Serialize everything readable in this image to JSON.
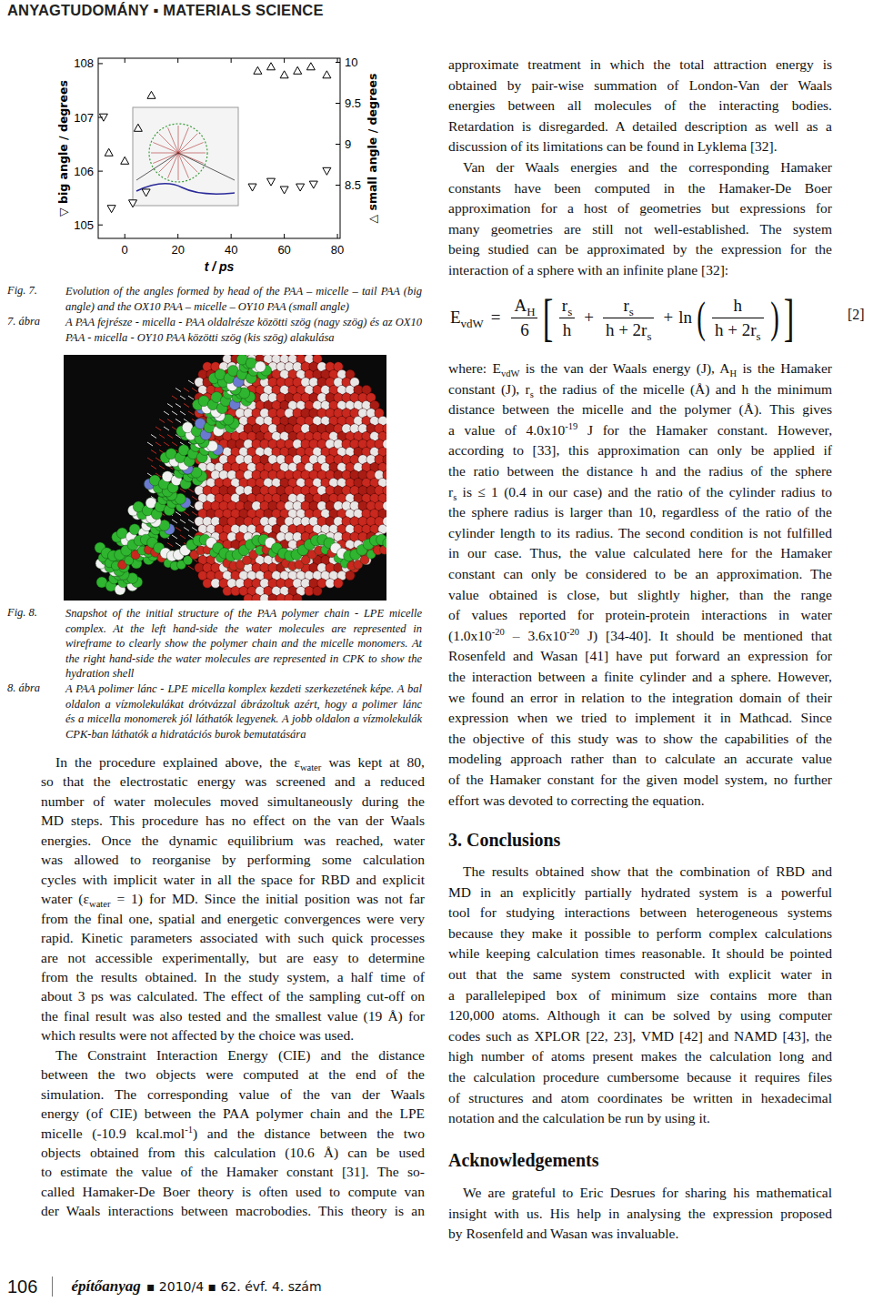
{
  "header": {
    "section": "ANYAGTUDOMÁNY ▪ MATERIALS SCIENCE"
  },
  "chart_data": {
    "type": "scatter",
    "x_label": "t / ps",
    "y_label": "▽ big angle / degrees",
    "y2_label": "△ small angle / degrees",
    "xlim": [
      -10,
      81
    ],
    "xticks": [
      0,
      20,
      40,
      60,
      80
    ],
    "ylim": [
      104.75,
      108.1
    ],
    "yticks": [
      105,
      106,
      107,
      108
    ],
    "y2lim": [
      7.85,
      10.05
    ],
    "y2ticks": [
      8.5,
      9,
      9.5,
      10
    ],
    "grid": false,
    "series": [
      {
        "marker": "triangle-down",
        "color": "#000000",
        "x": [
          -8,
          -5,
          3,
          8,
          48,
          55,
          60,
          66,
          71,
          76
        ],
        "values": [
          107.0,
          105.3,
          105.4,
          105.6,
          105.7,
          105.8,
          105.65,
          105.7,
          105.75,
          106.0
        ]
      },
      {
        "marker": "triangle-up",
        "color": "#000000",
        "axis": "y2",
        "x": [
          -6,
          0,
          5,
          10,
          50,
          55,
          60,
          65,
          70,
          76
        ],
        "values": [
          8.9,
          8.8,
          9.2,
          9.6,
          9.9,
          9.95,
          9.85,
          9.9,
          9.95,
          9.85
        ]
      }
    ]
  },
  "figures": [
    {
      "label": "Fig. 7.",
      "lines": [
        "Evolution of the angles formed by head of the PAA – micelle – tail PAA (big",
        "angle) and the OX10 PAA – micelle – OY10 PAA (small angle)"
      ],
      "label_hu": "7. ábra",
      "lines_hu": [
        "A PAA fejrésze - micella - PAA oldalrésze közötti szög (nagy szög) és az OX10",
        "PAA - micella - OY10 PAA közötti szög (kis szög) alakulása"
      ]
    },
    {
      "label": "Fig. 8.",
      "lines": [
        "Snapshot of the initial structure of the PAA polymer chain - LPE micelle",
        "complex. At the left hand-side the water molecules are represented in",
        "wireframe to clearly show the polymer chain and the micelle monomers. At",
        "the right hand-side the water molecules are represented in CPK to show the",
        "hydration shell"
      ],
      "label_hu": "8. ábra",
      "lines_hu": [
        "A PAA polimer lánc - LPE micella komplex kezdeti szerkezetének képe. A bal",
        "oldalon a vízmolekulákat drótvázzal ábrázoltuk azért, hogy a polimer lánc",
        "és a micella monomerek jól láthatók legyenek. A jobb oldalon a vízmolekulák",
        "CPK-ban láthatók a hidratációs burok bemutatására"
      ]
    }
  ],
  "left_column": [
    {
      "type": "paragraph",
      "indent": true,
      "lines": [
        [
          "In the procedure explained above, the ε",
          {
            "sub": "water"
          },
          " was kept at 80,"
        ],
        "so that the electrostatic energy was screened and a reduced",
        "number of water molecules moved simultaneously during the",
        "MD steps. This procedure has no effect on the van der Waals",
        "energies. Once the dynamic equilibrium was reached, water",
        "was allowed to reorganise by performing some calculation",
        "cycles with implicit water in all the space for RBD and explicit",
        [
          "water (ε",
          {
            "sub": "water"
          },
          " = 1) for MD. Since the initial position was not far"
        ],
        "from the final one, spatial and energetic convergences were very",
        "rapid. Kinetic parameters associated with such quick processes",
        "are not accessible experimentally, but are easy to determine",
        "from the results obtained. In the study system, a half time of",
        "about 3 ps was calculated. The effect of the sampling cut-off on",
        "the final result was also tested and the smallest value (19 Å) for",
        "which results were not affected by the choice was used."
      ]
    },
    {
      "type": "paragraph",
      "indent": true,
      "continues": true,
      "lines": [
        "The Constraint Interaction Energy (CIE) and the distance",
        "between the two objects were computed at the end of the",
        "simulation. The corresponding value of the van der Waals",
        "energy (of CIE) between the PAA polymer chain and the LPE",
        [
          "micelle (-10.9 kcal.mol",
          {
            "sup": "-1"
          },
          ") and the distance between the two"
        ],
        "objects obtained from this calculation (10.6 Å) can be used",
        "to estimate the value of the Hamaker constant [31]. The so-",
        "called Hamaker-De Boer theory is often used to compute van",
        "der Waals interactions between macrobodies. This theory is an"
      ]
    }
  ],
  "right_column": [
    {
      "type": "paragraph",
      "indent": false,
      "lines": [
        "approximate treatment in which the total attraction energy is",
        "obtained by pair-wise summation of London-Van der Waals",
        "energies between all molecules of the interacting bodies.",
        "Retardation is disregarded. A detailed description as well as a",
        "discussion of its limitations can be found in Lyklema [32]."
      ]
    },
    {
      "type": "paragraph",
      "indent": true,
      "lines": [
        "Van der Waals energies and the corresponding Hamaker",
        "constants have been computed in the Hamaker-De Boer",
        "approximation for a host of geometries but expressions for",
        "many geometries are still not well-established. The system",
        "being studied can be approximated by the expression for the",
        "interaction of a sphere with an infinite plane [32]:"
      ]
    },
    {
      "type": "equation",
      "lhs": [
        "E",
        {
          "sub": "vdW"
        }
      ],
      "rel": "=",
      "factor": {
        "num": [
          "A",
          {
            "sub": "H"
          }
        ],
        "den": [
          "6"
        ]
      },
      "terms": [
        {
          "num": [
            "r",
            {
              "sub": "s"
            }
          ],
          "den": [
            "h"
          ]
        },
        {
          "op": "+",
          "num": [
            "r",
            {
              "sub": "s"
            }
          ],
          "den": [
            "h + 2r",
            {
              "sub": "s"
            }
          ]
        },
        {
          "op": "+",
          "fn": "ln",
          "num": [
            "h"
          ],
          "den": [
            "h + 2r",
            {
              "sub": "s"
            }
          ]
        }
      ],
      "number": "[2]"
    },
    {
      "type": "paragraph",
      "indent": false,
      "lines": [
        [
          "where: E",
          {
            "sub": "vdW"
          },
          " is the van der Waals energy (J), A",
          {
            "sub": "H"
          },
          " is the Hamaker"
        ],
        [
          "constant (J), r",
          {
            "sub": "s"
          },
          " the radius of the micelle (Å) and h the minimum"
        ],
        "distance between the micelle and the polymer (Å). This gives",
        [
          "a value of 4.0x10",
          {
            "sup": "-19"
          },
          " J for the Hamaker constant. However,"
        ],
        "according to [33], this approximation can only be applied if",
        "the ratio between the distance h and the radius of the sphere",
        [
          "r",
          {
            "sub": "s"
          },
          " is ≤ 1 (0.4 in our case) and the ratio of the cylinder radius to"
        ],
        "the sphere radius is larger than 10, regardless of the ratio of the",
        "cylinder length to its radius. The second condition is not fulfilled",
        "in our case. Thus, the value calculated here for the Hamaker",
        "constant can only be considered to be an approximation. The",
        "value obtained is close, but slightly higher, than the range",
        "of values reported for protein-protein interactions in water",
        [
          "(1.0x10",
          {
            "sup": "-20"
          },
          " – 3.6x10",
          {
            "sup": "-20"
          },
          " J) [34-40]. It should be mentioned that"
        ],
        "Rosenfeld and Wasan [41] have put forward an expression for",
        "the interaction between a finite cylinder and a sphere. However,",
        "we found an error in relation to the integration domain of their",
        "expression when we tried to implement it in Mathcad. Since",
        "the objective of this study was to show the capabilities of the",
        "modeling approach rather than to calculate an accurate value",
        "of the Hamaker constant for the given model system, no further",
        "effort was devoted to correcting the equation."
      ]
    },
    {
      "type": "heading",
      "text": "3. Conclusions"
    },
    {
      "type": "paragraph",
      "indent": true,
      "lines": [
        "The results obtained show that the combination of RBD and",
        "MD in an explicitly partially hydrated system is a powerful",
        "tool for studying interactions between heterogeneous systems",
        "because they make it possible to perform complex calculations",
        "while keeping calculation times reasonable. It should be pointed",
        "out that the same system constructed with explicit water in",
        "a parallelepiped box of minimum size contains more than",
        "120,000 atoms. Although it can be solved by using computer",
        "codes such as XPLOR [22, 23], VMD [42] and NAMD [43], the",
        "high number of atoms present makes the calculation long and",
        "the calculation procedure cumbersome because it requires files",
        "of structures and atom coordinates be written in hexadecimal",
        "notation and the calculation be run by using it."
      ]
    },
    {
      "type": "heading",
      "text": "Acknowledgements"
    },
    {
      "type": "paragraph",
      "indent": true,
      "lines": [
        "We are grateful to Eric Desrues for sharing his mathematical",
        "insight with us. His help in analysing the expression proposed",
        "by Rosenfeld and Wasan was invaluable."
      ]
    }
  ],
  "footer": {
    "page": "106",
    "journal": "építőanyag",
    "issue": "▪ 2010/4 ▪ 62. évf. 4. szám"
  }
}
